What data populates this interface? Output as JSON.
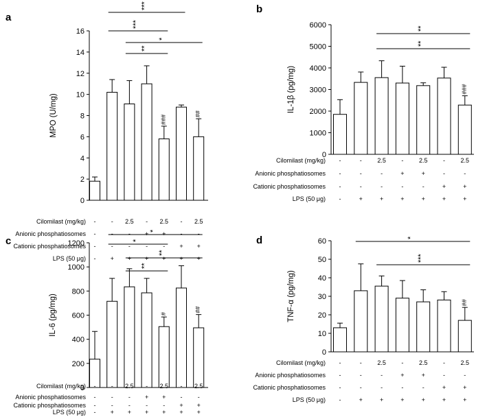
{
  "chart_data": [
    {
      "type": "bar",
      "panel": "a",
      "ylabel": "MPO (U/mg)",
      "ylim": [
        0,
        16
      ],
      "yticks": [
        0,
        2,
        4,
        6,
        8,
        10,
        12,
        14,
        16
      ],
      "values": [
        1.8,
        10.2,
        9.1,
        11.0,
        5.8,
        8.8,
        6.0
      ],
      "errors": [
        0.4,
        1.2,
        2.2,
        1.7,
        1.2,
        0.2,
        1.7
      ],
      "annotations": [
        "",
        "",
        "",
        "",
        "###",
        "",
        "##"
      ],
      "brackets": [
        {
          "from": 1,
          "to": 5,
          "label": "***"
        },
        {
          "from": 1,
          "to": 4,
          "label": "***"
        },
        {
          "from": 2,
          "to": 6,
          "label": "*"
        },
        {
          "from": 2,
          "to": 4,
          "label": "**"
        }
      ],
      "conditions": [
        {
          "label": "Cilomilast (mg/kg)",
          "values": [
            "-",
            "-",
            "2.5",
            "-",
            "2.5",
            "-",
            "2.5"
          ]
        },
        {
          "label": "Anionic phosphatiosomes",
          "values": [
            "-",
            "-",
            "-",
            "+",
            "+",
            "-",
            "-"
          ]
        },
        {
          "label": "Cationic phosphatiosomes",
          "values": [
            "-",
            "-",
            "-",
            "-",
            "-",
            "+",
            "+"
          ]
        },
        {
          "label": "LPS (50 μg)",
          "values": [
            "-",
            "+",
            "+",
            "+",
            "+",
            "+",
            "+"
          ]
        }
      ]
    },
    {
      "type": "bar",
      "panel": "b",
      "ylabel": "IL-1β (pg/mg)",
      "ylim": [
        0,
        6000
      ],
      "yticks": [
        0,
        1000,
        2000,
        3000,
        4000,
        5000,
        6000
      ],
      "values": [
        1850,
        3330,
        3550,
        3300,
        3180,
        3530,
        2280
      ],
      "errors": [
        680,
        480,
        780,
        780,
        130,
        500,
        430
      ],
      "annotations": [
        "",
        "",
        "",
        "",
        "",
        "",
        "###"
      ],
      "brackets": [
        {
          "from": 2,
          "to": 6,
          "label": "**"
        },
        {
          "from": 2,
          "to": 6,
          "label": "**"
        }
      ],
      "conditions": [
        {
          "label": "Cilomilast (mg/kg)",
          "values": [
            "-",
            "-",
            "2.5",
            "-",
            "2.5",
            "-",
            "2.5"
          ]
        },
        {
          "label": "Anionic phosphatiosomes",
          "values": [
            "-",
            "-",
            "-",
            "+",
            "+",
            "-",
            "-"
          ]
        },
        {
          "label": "Cationic phosphatiosomes",
          "values": [
            "-",
            "-",
            "-",
            "-",
            "-",
            "+",
            "+"
          ]
        },
        {
          "label": "LPS (50 μg)",
          "values": [
            "-",
            "+",
            "+",
            "+",
            "+",
            "+",
            "+"
          ]
        }
      ]
    },
    {
      "type": "bar",
      "panel": "c",
      "ylabel": "IL-6 (pg/mg)",
      "ylim": [
        0,
        1200
      ],
      "yticks": [
        0,
        200,
        400,
        600,
        800,
        1000,
        1200
      ],
      "values": [
        235,
        715,
        835,
        785,
        505,
        825,
        495
      ],
      "errors": [
        230,
        190,
        150,
        120,
        80,
        185,
        110
      ],
      "annotations": [
        "",
        "",
        "",
        "",
        "#",
        "",
        "##"
      ],
      "brackets": [
        {
          "from": 1,
          "to": 6,
          "label": "*"
        },
        {
          "from": 1,
          "to": 4,
          "label": "*"
        },
        {
          "from": 2,
          "to": 6,
          "label": "**"
        },
        {
          "from": 2,
          "to": 4,
          "label": "**"
        }
      ],
      "conditions": [
        {
          "label": "Cilomilast (mg/kg)",
          "values": [
            "-",
            "-",
            "2.5",
            "-",
            "2.5",
            "-",
            "2.5"
          ]
        },
        {
          "label": "Anionic phosphatiosomes",
          "values": [
            "-",
            "-",
            "-",
            "+",
            "+",
            "-",
            "-"
          ]
        },
        {
          "label": "Cationic phosphatiosomes",
          "values": [
            "-",
            "-",
            "-",
            "-",
            "-",
            "+",
            "+"
          ]
        },
        {
          "label": "LPS (50 μg)",
          "values": [
            "-",
            "+",
            "+",
            "+",
            "+",
            "+",
            "+"
          ]
        }
      ]
    },
    {
      "type": "bar",
      "panel": "d",
      "ylabel": "TNF-α (pg/mg)",
      "ylim": [
        0,
        60
      ],
      "yticks": [
        0,
        10,
        20,
        30,
        40,
        50,
        60
      ],
      "values": [
        13,
        33,
        35.5,
        29,
        27,
        28,
        17
      ],
      "errors": [
        2.5,
        14.5,
        5.5,
        9.5,
        6.5,
        4.5,
        7
      ],
      "annotations": [
        "",
        "",
        "",
        "",
        "",
        "",
        "##"
      ],
      "brackets": [
        {
          "from": 1,
          "to": 6,
          "label": "*"
        },
        {
          "from": 2,
          "to": 6,
          "label": "***"
        }
      ],
      "conditions": [
        {
          "label": "Cilomilast (mg/kg)",
          "values": [
            "-",
            "-",
            "2.5",
            "-",
            "2.5",
            "-",
            "2.5"
          ]
        },
        {
          "label": "Anionic phosphatiosomes",
          "values": [
            "-",
            "-",
            "-",
            "+",
            "+",
            "-",
            "-"
          ]
        },
        {
          "label": "Cationic phosphatiosomes",
          "values": [
            "-",
            "-",
            "-",
            "-",
            "-",
            "+",
            "+"
          ]
        },
        {
          "label": "LPS (50 μg)",
          "values": [
            "-",
            "+",
            "+",
            "+",
            "+",
            "+",
            "+"
          ]
        }
      ]
    }
  ]
}
